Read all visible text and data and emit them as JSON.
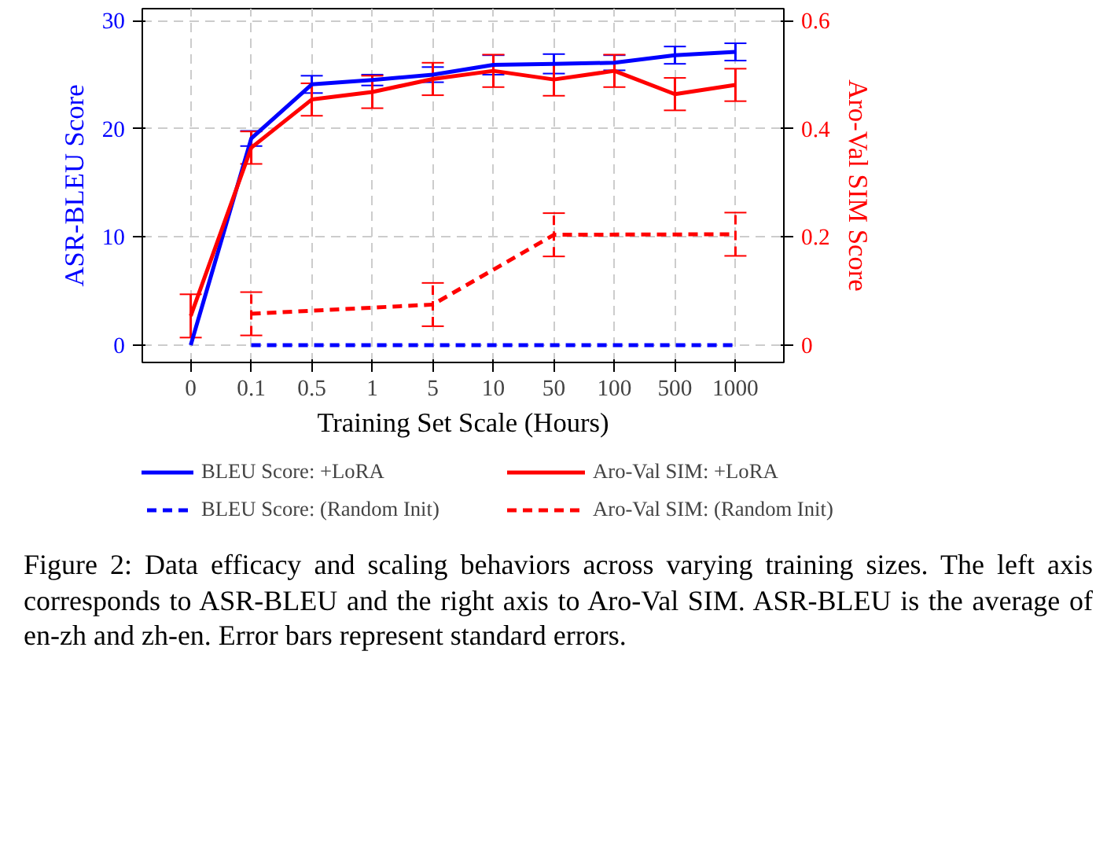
{
  "chart_data": {
    "type": "line",
    "xlabel": "Training Set Scale (Hours)",
    "ylabel": "ASR-BLEU Score",
    "y2label": "Aro-Val SIM Score",
    "categories": [
      "0",
      "0.1",
      "0.5",
      "1",
      "5",
      "10",
      "50",
      "100",
      "500",
      "1000"
    ],
    "ylim": [
      -1.6,
      31.1
    ],
    "yticks": [
      0,
      10,
      20,
      30
    ],
    "y2lim": [
      -0.032,
      0.622
    ],
    "y2ticks": [
      0,
      0.2,
      0.4,
      0.6
    ],
    "grid": true,
    "legend": "bottom",
    "marker": "none",
    "series": [
      {
        "name": "BLEU Score: +LoRA",
        "color": "#0000ff",
        "line_style": "solid",
        "values": [
          0,
          19.1,
          24.1,
          24.5,
          25.0,
          25.9,
          26.0,
          26.1,
          26.8,
          27.1
        ],
        "errors": [
          null,
          0.7,
          0.8,
          0.5,
          0.7,
          0.9,
          0.9,
          0.7,
          0.8,
          0.8
        ]
      },
      {
        "name": "BLEU Score: (Random Init)",
        "color": "#0000ff",
        "line_style": "dashed",
        "values": [
          null,
          0,
          0,
          0,
          0,
          0,
          0,
          0,
          0,
          0
        ]
      },
      {
        "name": "Aro-Val SIM: +LoRA",
        "color": "#ff0000",
        "line_style": "solid",
        "axis": "y2",
        "values": [
          0.054,
          0.365,
          0.454,
          0.468,
          0.492,
          0.507,
          0.491,
          0.507,
          0.464,
          0.481
        ],
        "errors": [
          0.04,
          0.03,
          0.03,
          0.03,
          0.03,
          0.03,
          0.03,
          0.03,
          0.03,
          0.03
        ]
      },
      {
        "name": "Aro-Val SIM: (Random Init)",
        "color": "#ff0000",
        "line_style": "dashed",
        "axis": "y2",
        "values": [
          null,
          0.058,
          null,
          null,
          0.075,
          null,
          0.204,
          null,
          null,
          0.205
        ],
        "errors": [
          null,
          0.04,
          null,
          null,
          0.04,
          null,
          0.04,
          null,
          null,
          0.04
        ]
      }
    ],
    "annotations": [
      "Figure 2: Data efficacy and scaling behaviors across varying training sizes. The left axis corresponds to ASR-BLEU and the right axis to Aro-Val SIM. ASR-BLEU is the average of en-zh and zh-en. Error bars represent standard errors."
    ]
  }
}
